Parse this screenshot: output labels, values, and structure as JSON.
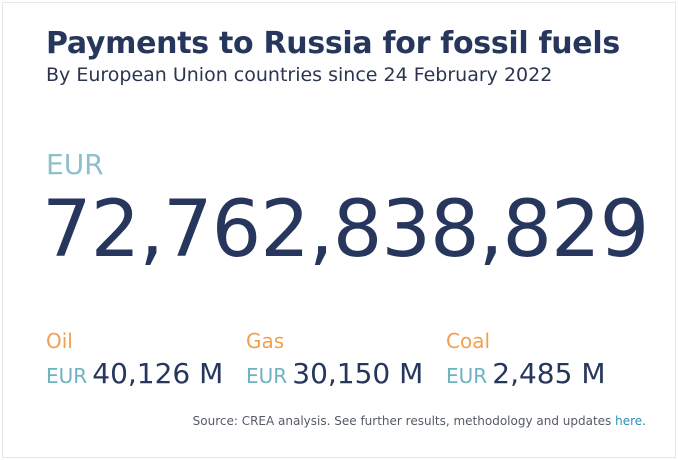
{
  "header": {
    "title": "Payments to Russia for fossil fuels",
    "subtitle": "By European Union countries since 24 February 2022"
  },
  "total": {
    "currency": "EUR",
    "value": "72,762,838,829"
  },
  "fuels": [
    {
      "name": "Oil",
      "currency": "EUR",
      "value": "40,126 M"
    },
    {
      "name": "Gas",
      "currency": "EUR",
      "value": "30,150 M"
    },
    {
      "name": "Coal",
      "currency": "EUR",
      "value": "2,485 M"
    }
  ],
  "footer": {
    "source_text": "Source: CREA analysis. See further results, methodology and updates ",
    "link_text": "here",
    "period": "."
  },
  "colors": {
    "title": "#27365c",
    "fuel_label": "#f0a050",
    "currency": "#8ec0cc",
    "link": "#2a8fb8"
  }
}
